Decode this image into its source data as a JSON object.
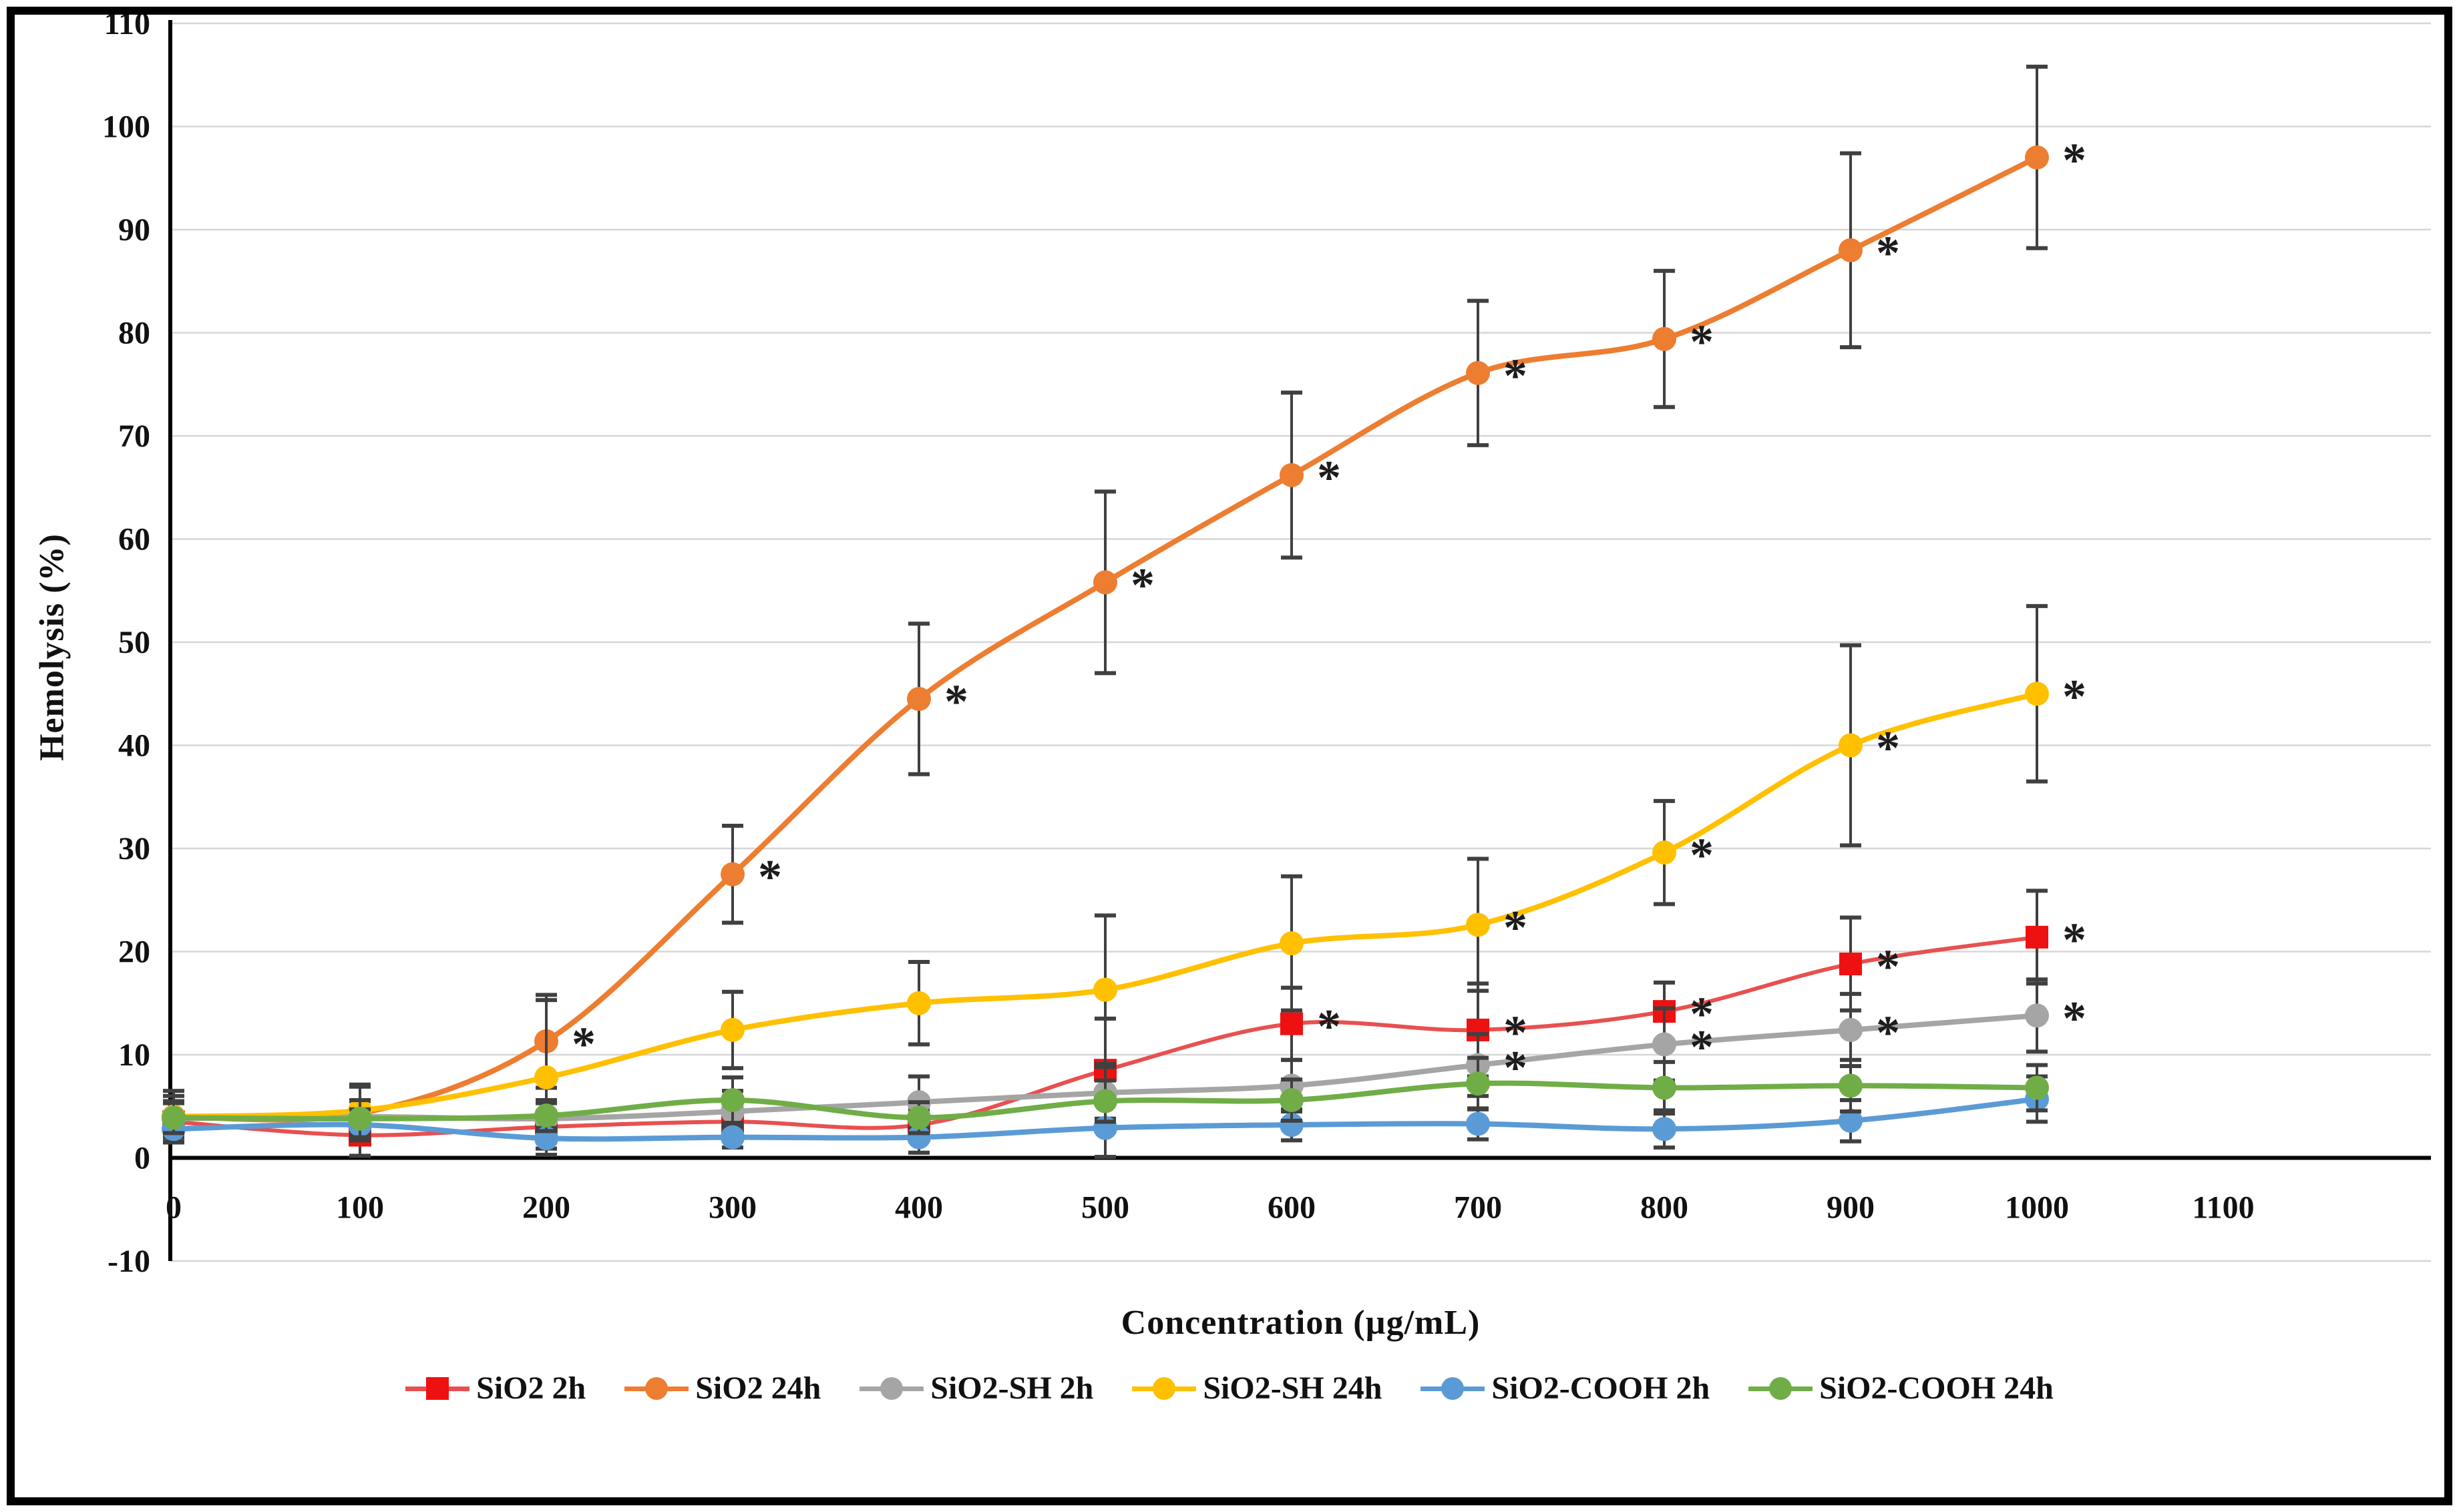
{
  "figure": {
    "xlabel": "Concentration (µg/mL)",
    "ylabel": "Hemolysis (%)"
  },
  "chart_data": {
    "type": "line",
    "x": [
      0,
      100,
      200,
      300,
      400,
      500,
      600,
      700,
      800,
      900,
      1000
    ],
    "xlabel": "Concentration (µg/mL)",
    "ylabel": "Hemolysis (%)",
    "xlim": [
      0,
      1212
    ],
    "ylim": [
      -10,
      110
    ],
    "xticks": [
      0,
      100,
      200,
      300,
      400,
      500,
      600,
      700,
      800,
      900,
      1000,
      1100
    ],
    "ytick_step": 10,
    "grid": "horizontal-light-gray",
    "legend_position": "bottom",
    "significance_symbol": "*",
    "colors": {
      "grid": "#D6D6D6",
      "axis": "#000000",
      "error_bar": "#404040",
      "text": "#111111"
    },
    "series": [
      {
        "name": "SiO2 2h",
        "color": "#EE1111",
        "line_color": "#E85050",
        "marker": "square",
        "values": [
          3.5,
          2.2,
          3.0,
          3.5,
          3.2,
          8.5,
          13.0,
          12.4,
          14.2,
          18.8,
          21.4
        ],
        "error": [
          2.0,
          2.0,
          1.5,
          1.5,
          1.5,
          5.0,
          3.5,
          4.5,
          2.8,
          4.5,
          4.5
        ],
        "significant": [
          false,
          false,
          false,
          false,
          false,
          false,
          true,
          true,
          true,
          true,
          true
        ]
      },
      {
        "name": "SiO2 24h",
        "color": "#ED7D31",
        "line_color": "#ED7D31",
        "marker": "circle",
        "values": [
          4.0,
          4.3,
          11.3,
          27.5,
          44.5,
          55.8,
          66.2,
          76.1,
          79.4,
          88.0,
          97.0
        ],
        "error": [
          2.5,
          2.6,
          4.5,
          4.7,
          7.3,
          8.8,
          8.0,
          7.0,
          6.6,
          9.4,
          8.8
        ],
        "significant": [
          false,
          false,
          true,
          true,
          true,
          true,
          true,
          true,
          true,
          true,
          true
        ]
      },
      {
        "name": "SiO2-SH 2h",
        "color": "#A5A5A5",
        "line_color": "#A5A5A5",
        "marker": "circle",
        "values": [
          3.8,
          4.0,
          3.8,
          4.5,
          5.4,
          6.3,
          7.0,
          9.0,
          11.0,
          12.4,
          13.8
        ],
        "error": [
          1.5,
          1.5,
          1.5,
          2.0,
          2.5,
          2.5,
          2.5,
          3.0,
          3.5,
          3.5,
          3.5
        ],
        "significant": [
          false,
          false,
          false,
          false,
          false,
          false,
          false,
          true,
          true,
          true,
          true
        ]
      },
      {
        "name": "SiO2-SH  24h",
        "color": "#FFC000",
        "line_color": "#FFC000",
        "marker": "circle",
        "values": [
          4.0,
          4.6,
          7.8,
          12.4,
          15.0,
          16.3,
          20.8,
          22.6,
          29.6,
          40.0,
          45.0
        ],
        "error": [
          2.0,
          2.5,
          7.5,
          3.7,
          4.0,
          7.2,
          6.5,
          6.4,
          5.0,
          9.7,
          8.5
        ],
        "significant": [
          false,
          false,
          false,
          false,
          false,
          false,
          false,
          true,
          true,
          true,
          true
        ]
      },
      {
        "name": "SiO2-COOH 2h",
        "color": "#5B9BD5",
        "line_color": "#5B9BD5",
        "marker": "circle",
        "values": [
          2.8,
          3.2,
          1.9,
          2.0,
          2.0,
          2.9,
          3.2,
          3.3,
          2.8,
          3.6,
          5.7
        ],
        "error": [
          1.2,
          1.5,
          1.0,
          1.0,
          1.5,
          2.8,
          1.5,
          1.5,
          1.8,
          2.0,
          2.2
        ],
        "significant": [
          false,
          false,
          false,
          false,
          false,
          false,
          false,
          false,
          false,
          false,
          false
        ]
      },
      {
        "name": "SiO2-COOH 24h",
        "color": "#70AD47",
        "line_color": "#70AD47",
        "marker": "circle",
        "values": [
          3.9,
          3.8,
          4.1,
          5.6,
          3.9,
          5.5,
          5.6,
          7.2,
          6.8,
          7.0,
          6.8
        ],
        "error": [
          1.5,
          1.8,
          1.5,
          2.2,
          1.5,
          2.0,
          2.0,
          2.5,
          2.5,
          2.5,
          2.2
        ],
        "significant": [
          false,
          false,
          false,
          false,
          false,
          false,
          false,
          false,
          false,
          false,
          false
        ]
      }
    ]
  }
}
